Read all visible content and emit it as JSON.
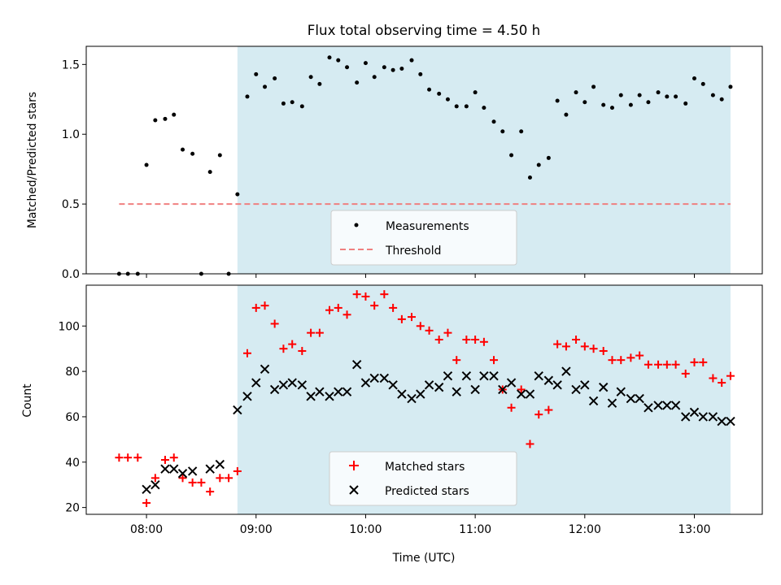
{
  "chart_data": [
    {
      "type": "scatter",
      "title": "Flux total observing time = 4.50 h",
      "ylabel": "Matched/Predicted stars",
      "xlabel": "",
      "xlim": [
        7.45,
        13.62
      ],
      "ylim": [
        0,
        1.63
      ],
      "yticks": [
        0.0,
        0.5,
        1.0,
        1.5
      ],
      "ytick_labels": [
        "0.0",
        "0.5",
        "1.0",
        "1.5"
      ],
      "xticks": [
        8,
        9,
        10,
        11,
        12,
        13
      ],
      "shaded_region": [
        8.83,
        13.33
      ],
      "threshold": {
        "name": "Threshold",
        "value": 0.5,
        "x_range": [
          7.75,
          13.33
        ],
        "color": "#f08080"
      },
      "legend": [
        {
          "label": "Measurements"
        },
        {
          "label": "Threshold"
        }
      ],
      "series": [
        {
          "name": "Measurements",
          "x": [
            7.75,
            7.83,
            7.92,
            8.0,
            8.08,
            8.17,
            8.25,
            8.33,
            8.42,
            8.5,
            8.58,
            8.67,
            8.75,
            8.83,
            8.92,
            9.0,
            9.08,
            9.17,
            9.25,
            9.33,
            9.42,
            9.5,
            9.58,
            9.67,
            9.75,
            9.83,
            9.92,
            10.0,
            10.08,
            10.17,
            10.25,
            10.33,
            10.42,
            10.5,
            10.58,
            10.67,
            10.75,
            10.83,
            10.92,
            11.0,
            11.08,
            11.17,
            11.25,
            11.33,
            11.42,
            11.5,
            11.58,
            11.67,
            11.75,
            11.83,
            11.92,
            12.0,
            12.08,
            12.17,
            12.25,
            12.33,
            12.42,
            12.5,
            12.58,
            12.67,
            12.75,
            12.83,
            12.92,
            13.0,
            13.08,
            13.17,
            13.25,
            13.33
          ],
          "y": [
            0.0,
            0.0,
            0.0,
            0.78,
            1.1,
            1.11,
            1.14,
            0.89,
            0.86,
            0.0,
            0.73,
            0.85,
            0.0,
            0.57,
            1.27,
            1.43,
            1.34,
            1.4,
            1.22,
            1.23,
            1.2,
            1.41,
            1.36,
            1.55,
            1.53,
            1.48,
            1.37,
            1.51,
            1.41,
            1.48,
            1.46,
            1.47,
            1.53,
            1.43,
            1.32,
            1.29,
            1.25,
            1.2,
            1.2,
            1.3,
            1.19,
            1.09,
            1.02,
            0.85,
            1.02,
            0.69,
            0.78,
            0.83,
            1.24,
            1.14,
            1.3,
            1.23,
            1.34,
            1.21,
            1.19,
            1.28,
            1.21,
            1.28,
            1.23,
            1.3,
            1.27,
            1.27,
            1.22,
            1.4,
            1.36,
            1.28,
            1.25,
            1.34
          ]
        }
      ]
    },
    {
      "type": "scatter",
      "title": "",
      "ylabel": "Count",
      "xlabel": "Time (UTC)",
      "xlim": [
        7.45,
        13.62
      ],
      "ylim": [
        17,
        118
      ],
      "yticks": [
        20,
        40,
        60,
        80,
        100
      ],
      "ytick_labels": [
        "20",
        "40",
        "60",
        "80",
        "100"
      ],
      "xticks": [
        8,
        9,
        10,
        11,
        12,
        13
      ],
      "xtick_labels": [
        "08:00",
        "09:00",
        "10:00",
        "11:00",
        "12:00",
        "13:00"
      ],
      "shaded_region": [
        8.83,
        13.33
      ],
      "legend": [
        {
          "label": "Matched stars"
        },
        {
          "label": "Predicted stars"
        }
      ],
      "series": [
        {
          "name": "Matched stars",
          "marker": "+",
          "color": "#ff0000",
          "x": [
            7.75,
            7.83,
            7.92,
            8.0,
            8.08,
            8.17,
            8.25,
            8.33,
            8.42,
            8.5,
            8.58,
            8.67,
            8.75,
            8.83,
            8.92,
            9.0,
            9.08,
            9.17,
            9.25,
            9.33,
            9.42,
            9.5,
            9.58,
            9.67,
            9.75,
            9.83,
            9.92,
            10.0,
            10.08,
            10.17,
            10.25,
            10.33,
            10.42,
            10.5,
            10.58,
            10.67,
            10.75,
            10.83,
            10.92,
            11.0,
            11.08,
            11.17,
            11.25,
            11.33,
            11.42,
            11.5,
            11.58,
            11.67,
            11.75,
            11.83,
            11.92,
            12.0,
            12.08,
            12.17,
            12.25,
            12.33,
            12.42,
            12.5,
            12.58,
            12.67,
            12.75,
            12.83,
            12.92,
            13.0,
            13.08,
            13.17,
            13.25,
            13.33
          ],
          "y": [
            42,
            42,
            42,
            22,
            33,
            41,
            42,
            33,
            31,
            31,
            27,
            33,
            33,
            36,
            88,
            108,
            109,
            101,
            90,
            92,
            89,
            97,
            97,
            107,
            108,
            105,
            114,
            113,
            109,
            114,
            108,
            103,
            104,
            100,
            98,
            94,
            97,
            85,
            94,
            94,
            93,
            85,
            72,
            64,
            72,
            48,
            61,
            63,
            92,
            91,
            94,
            91,
            90,
            89,
            85,
            85,
            86,
            87,
            83,
            83,
            83,
            83,
            79,
            84,
            84,
            77,
            75,
            78
          ]
        },
        {
          "name": "Predicted stars",
          "marker": "x",
          "color": "#000000",
          "x": [
            8.0,
            8.08,
            8.17,
            8.25,
            8.33,
            8.42,
            8.58,
            8.67,
            8.83,
            8.92,
            9.0,
            9.08,
            9.17,
            9.25,
            9.33,
            9.42,
            9.5,
            9.58,
            9.67,
            9.75,
            9.83,
            9.92,
            10.0,
            10.08,
            10.17,
            10.25,
            10.33,
            10.42,
            10.5,
            10.58,
            10.67,
            10.75,
            10.83,
            10.92,
            11.0,
            11.08,
            11.17,
            11.25,
            11.33,
            11.42,
            11.5,
            11.58,
            11.67,
            11.75,
            11.83,
            11.92,
            12.0,
            12.08,
            12.17,
            12.25,
            12.33,
            12.42,
            12.5,
            12.58,
            12.67,
            12.75,
            12.83,
            12.92,
            13.0,
            13.08,
            13.17,
            13.25,
            13.33
          ],
          "y": [
            28,
            30,
            37,
            37,
            35,
            36,
            37,
            39,
            63,
            69,
            75,
            81,
            72,
            74,
            75,
            74,
            69,
            71,
            69,
            71,
            71,
            83,
            75,
            77,
            77,
            74,
            70,
            68,
            70,
            74,
            73,
            78,
            71,
            78,
            72,
            78,
            78,
            72,
            75,
            70,
            70,
            78,
            76,
            74,
            80,
            72,
            74,
            67,
            73,
            66,
            71,
            68,
            68,
            64,
            65,
            65,
            65,
            60,
            62,
            60,
            60,
            58,
            58
          ]
        }
      ]
    }
  ]
}
